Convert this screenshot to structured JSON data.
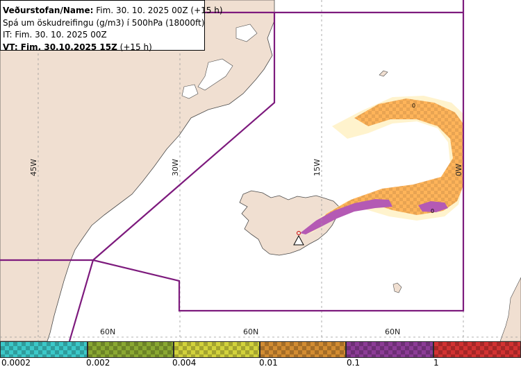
{
  "info": {
    "name_label": "Veðurstofan/Name:",
    "name_value": "Fim. 30. 10. 2025 00Z (+15 h)",
    "description": "Spá um öskudreifingu (g/m3) í 500hPa (18000ft)",
    "it_line": "IT: Fim. 30. 10. 2025 00Z",
    "vt_label": "VT: Fim. 30.10.2025 15Z",
    "vt_suffix": "(+15 h)"
  },
  "grid": {
    "longitudes": [
      "45W",
      "30W",
      "15W",
      "0W"
    ],
    "latitudes": [
      "60N",
      "60N",
      "60N"
    ]
  },
  "plume": {
    "contour_labels": [
      "0",
      "0"
    ]
  },
  "legend": {
    "items": [
      {
        "label": "0.0002",
        "color": "#3cc8c8"
      },
      {
        "label": "0.002",
        "color": "#8aa832"
      },
      {
        "label": "0.004",
        "color": "#d2d23c"
      },
      {
        "label": "0.01",
        "color": "#d28c32"
      },
      {
        "label": "0.1",
        "color": "#8c3c96"
      },
      {
        "label": "1",
        "color": "#d23232"
      }
    ]
  },
  "colors": {
    "land": "#f0dfd1",
    "sea": "#ffffff",
    "boundary": "#7d1a7d",
    "plume_low": "#ffb45a",
    "plume_high": "#b45ab4"
  }
}
